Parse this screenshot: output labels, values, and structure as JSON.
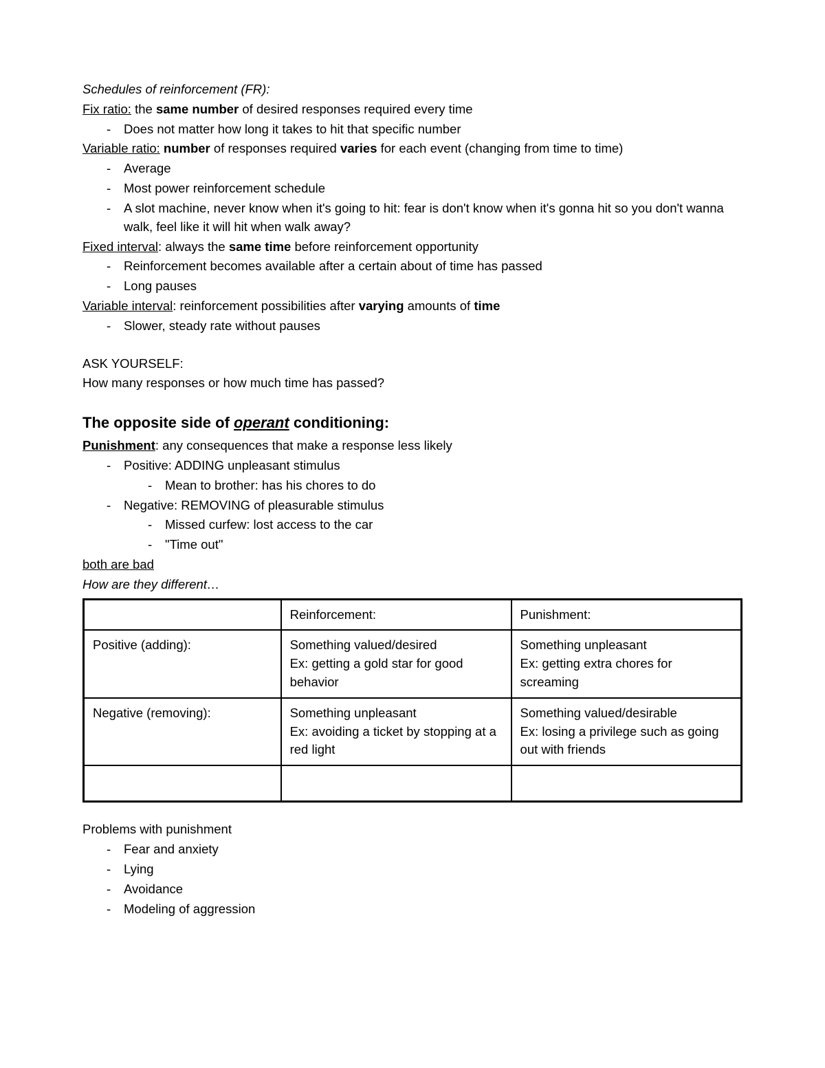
{
  "section1": {
    "title": "Schedules of reinforcement (FR):",
    "fix_ratio_label": "Fix ratio:",
    "fix_ratio_pre": " the ",
    "fix_ratio_bold": "same number",
    "fix_ratio_post": " of desired responses required every time",
    "fix_ratio_bullets": [
      "Does not matter how long it takes to hit that specific number"
    ],
    "var_ratio_label": "Variable ratio:",
    "var_ratio_pre": " ",
    "var_ratio_b1": "number",
    "var_ratio_mid": " of responses required ",
    "var_ratio_b2": "varies",
    "var_ratio_post": " for each event (changing from time to time)",
    "var_ratio_bullets": [
      "Average",
      "Most power reinforcement schedule",
      "A slot machine, never know when it's going to hit: fear is don't know when it's gonna hit so you don't wanna walk, feel like it will hit when walk away?"
    ],
    "fix_int_label": "Fixed interval",
    "fix_int_pre": ": always the ",
    "fix_int_bold": "same time",
    "fix_int_post": " before reinforcement opportunity",
    "fix_int_bullets": [
      "Reinforcement becomes available after a certain about of time has passed",
      "Long pauses"
    ],
    "var_int_label": "Variable interval",
    "var_int_pre": ": reinforcement possibilities after ",
    "var_int_b1": "varying",
    "var_int_mid": " amounts of ",
    "var_int_b2": "time",
    "var_int_bullets": [
      "Slower, steady rate without pauses"
    ]
  },
  "ask": {
    "label": "ASK YOURSELF:",
    "question": "How many responses or how much time has passed?"
  },
  "section2": {
    "heading_pre": "The opposite side of ",
    "heading_op": "operant",
    "heading_post": " conditioning:",
    "punishment_label": "Punishment",
    "punishment_def": ": any consequences that make a response less likely",
    "pos_label": "Positive: ADDING unpleasant stimulus",
    "pos_sub": [
      "Mean to brother: has his chores to do"
    ],
    "neg_label": "Negative: REMOVING of pleasurable stimulus",
    "neg_sub": [
      "Missed curfew: lost access to the car",
      "\"Time out\""
    ],
    "both_bad": "both are bad",
    "how_diff": "How are they different…"
  },
  "table": {
    "headers": [
      "",
      "Reinforcement:",
      "Punishment:"
    ],
    "rows": [
      [
        "Positive (adding):",
        "Something valued/desired\nEx: getting a gold star for good behavior",
        "Something unpleasant\nEx: getting extra chores for screaming"
      ],
      [
        "Negative (removing):",
        "Something unpleasant\nEx: avoiding a ticket by stopping at a red light",
        "Something valued/desirable\nEx: losing a privilege such as going out with friends"
      ],
      [
        "",
        "",
        ""
      ]
    ]
  },
  "problems": {
    "title": "Problems with punishment",
    "items": [
      "Fear and anxiety",
      "Lying",
      "Avoidance",
      "Modeling of aggression"
    ]
  }
}
